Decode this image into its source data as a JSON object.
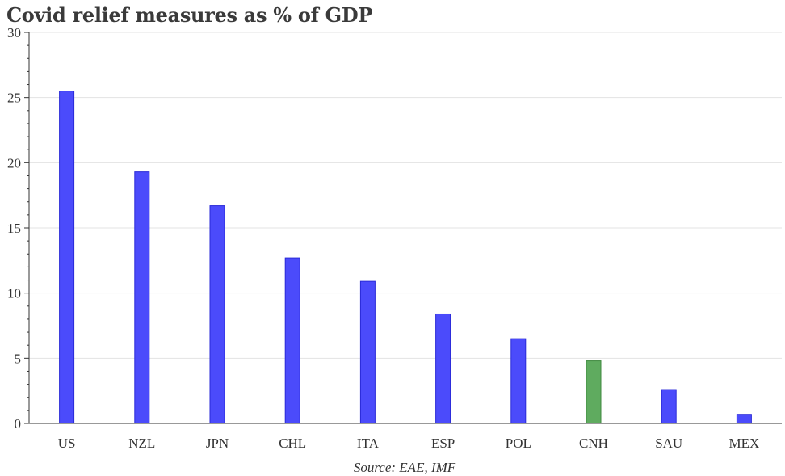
{
  "chart_data": {
    "type": "bar",
    "title": "Covid relief measures as % of GDP",
    "xlabel": "",
    "ylabel": "",
    "source": "Source: EAE, IMF",
    "categories": [
      "US",
      "NZL",
      "JPN",
      "CHL",
      "ITA",
      "ESP",
      "POL",
      "CNH",
      "SAU",
      "MEX"
    ],
    "values": [
      25.5,
      19.3,
      16.7,
      12.7,
      10.9,
      8.4,
      6.5,
      4.8,
      2.6,
      0.7
    ],
    "colors": [
      "#4b4bfb",
      "#4b4bfb",
      "#4b4bfb",
      "#4b4bfb",
      "#4b4bfb",
      "#4b4bfb",
      "#4b4bfb",
      "#5fab5f",
      "#4b4bfb",
      "#4b4bfb"
    ],
    "ylim": [
      0,
      30
    ],
    "yticks": [
      0,
      5,
      10,
      15,
      20,
      25,
      30
    ],
    "grid": true
  }
}
